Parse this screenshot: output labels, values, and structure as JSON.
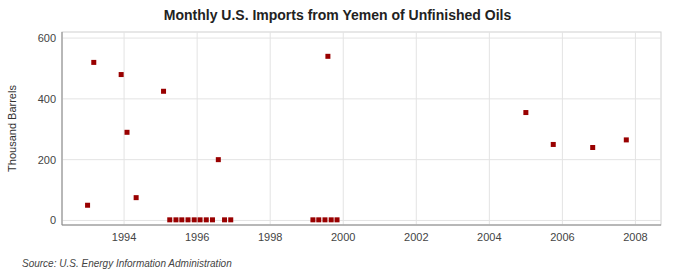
{
  "chart_data": {
    "type": "scatter",
    "title": "Monthly U.S. Imports from Yemen of Unfinished Oils",
    "ylabel": "Thousand Barrels",
    "source": "Source: U.S. Energy Information Administration",
    "x": [
      1993.0,
      1993.17,
      1993.92,
      1994.08,
      1994.33,
      1995.08,
      1995.25,
      1995.42,
      1995.58,
      1995.75,
      1995.92,
      1996.08,
      1996.25,
      1996.42,
      1996.58,
      1996.75,
      1996.92,
      1999.17,
      1999.33,
      1999.5,
      1999.58,
      1999.67,
      1999.83,
      2005.0,
      2005.75,
      2006.83,
      2007.75
    ],
    "values": [
      50,
      520,
      480,
      290,
      75,
      425,
      2,
      2,
      2,
      2,
      2,
      2,
      2,
      2,
      200,
      2,
      2,
      2,
      2,
      2,
      540,
      2,
      2,
      355,
      250,
      240,
      265
    ],
    "color": "#990000",
    "marker": "square",
    "xlim": [
      1992.3,
      2008.7
    ],
    "ylim": [
      -15,
      620
    ],
    "xticks": [
      1994,
      1996,
      1998,
      2000,
      2002,
      2004,
      2006,
      2008
    ],
    "yticks": [
      0,
      200,
      400,
      600
    ],
    "grid": true
  }
}
